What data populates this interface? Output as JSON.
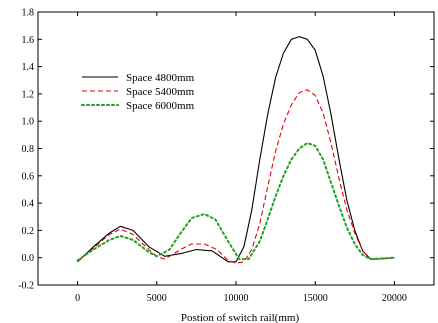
{
  "chart_data": {
    "type": "line",
    "title": "",
    "xlabel": "Postion of switch rail(mm)",
    "ylabel": "",
    "xlim": [
      -2500,
      22500
    ],
    "ylim": [
      -0.2,
      1.8
    ],
    "xticks": [
      0,
      5000,
      10000,
      15000,
      20000
    ],
    "yticks": [
      -0.2,
      0.0,
      0.2,
      0.4,
      0.6,
      0.8,
      1.0,
      1.2,
      1.4,
      1.6,
      1.8
    ],
    "ytick_labels": [
      "-0.2",
      "0.0",
      "0.2",
      "0.4",
      "0.6",
      "0.8",
      "1.0",
      "1.2",
      "1.4",
      "1.6",
      "1.8"
    ],
    "grid": false,
    "legend_position": "upper-left",
    "series": [
      {
        "name": "Space 4800mm",
        "color": "#000000",
        "dash": "solid",
        "x": [
          0,
          1000,
          2000,
          2700,
          3500,
          4500,
          5500,
          6500,
          7500,
          8500,
          9500,
          10000,
          10500,
          11000,
          11500,
          12000,
          12500,
          13000,
          13500,
          14000,
          14500,
          15000,
          15500,
          16000,
          16500,
          17000,
          17500,
          18000,
          18500,
          19000,
          20000
        ],
        "y": [
          -0.03,
          0.08,
          0.18,
          0.23,
          0.2,
          0.08,
          0.01,
          0.03,
          0.06,
          0.05,
          -0.03,
          -0.03,
          0.08,
          0.35,
          0.72,
          1.05,
          1.32,
          1.5,
          1.6,
          1.62,
          1.6,
          1.52,
          1.33,
          1.05,
          0.72,
          0.42,
          0.2,
          0.05,
          -0.01,
          -0.01,
          0.0
        ]
      },
      {
        "name": "Space 5400mm",
        "color": "#e8000b",
        "dash": "dashed",
        "x": [
          0,
          1000,
          2000,
          2700,
          3500,
          4500,
          5000,
          5500,
          6500,
          7200,
          8000,
          8800,
          9500,
          10000,
          10500,
          11000,
          11500,
          12000,
          12500,
          13000,
          13500,
          14000,
          14500,
          15000,
          15500,
          16000,
          16500,
          17000,
          17500,
          18000,
          18500,
          19000,
          20000
        ],
        "y": [
          -0.03,
          0.07,
          0.17,
          0.21,
          0.17,
          0.06,
          0.01,
          -0.01,
          0.06,
          0.1,
          0.1,
          0.06,
          -0.02,
          -0.04,
          -0.03,
          0.06,
          0.25,
          0.52,
          0.78,
          0.98,
          1.12,
          1.21,
          1.23,
          1.19,
          1.06,
          0.84,
          0.58,
          0.35,
          0.18,
          0.05,
          -0.01,
          -0.01,
          0.0
        ]
      },
      {
        "name": "Space 6000mm",
        "color": "#1ea51e",
        "dash": "dotted",
        "x": [
          0,
          1000,
          2000,
          2700,
          3500,
          4500,
          5000,
          5800,
          6500,
          7200,
          8000,
          8700,
          9500,
          10200,
          10800,
          11500,
          12000,
          12500,
          13000,
          13500,
          14000,
          14500,
          15000,
          15500,
          16000,
          16500,
          17000,
          17500,
          18000,
          18500,
          20000
        ],
        "y": [
          -0.02,
          0.06,
          0.13,
          0.16,
          0.13,
          0.04,
          0.01,
          0.06,
          0.18,
          0.29,
          0.32,
          0.28,
          0.12,
          -0.01,
          -0.01,
          0.12,
          0.28,
          0.45,
          0.6,
          0.72,
          0.8,
          0.84,
          0.82,
          0.72,
          0.55,
          0.38,
          0.22,
          0.1,
          0.02,
          -0.01,
          0.0
        ]
      }
    ]
  }
}
